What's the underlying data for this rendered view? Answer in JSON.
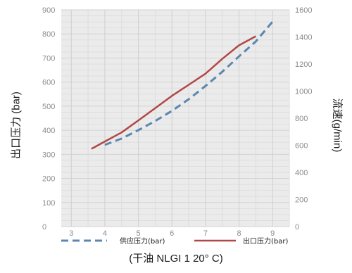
{
  "chart_data": {
    "type": "line",
    "title": "",
    "xlabel": "(干油 NLGI 1 20° C)",
    "ylabel_left": "出口压力 (bar)",
    "ylabel_right": "流速(g/min)",
    "x_ticks": [
      3,
      4,
      5,
      6,
      7,
      8,
      9
    ],
    "xlim": [
      2.7,
      9.5
    ],
    "y_left_ticks": [
      0,
      100,
      200,
      300,
      400,
      500,
      600,
      700,
      800,
      900
    ],
    "y_left_lim": [
      0,
      900
    ],
    "y_right_ticks": [
      0,
      200,
      400,
      600,
      800,
      1000,
      1200,
      1400,
      1600
    ],
    "y_right_lim": [
      0,
      1600
    ],
    "grid": true,
    "legend_position": "bottom",
    "series": [
      {
        "name": "供应压力(bar)",
        "style": "dashed",
        "color": "#5b87b0",
        "axis": "right",
        "x": [
          4.0,
          4.5,
          5.0,
          5.5,
          6.0,
          6.5,
          7.0,
          7.5,
          8.0,
          8.5,
          9.0
        ],
        "y": [
          603,
          650,
          712,
          779,
          854,
          940,
          1038,
          1143,
          1256,
          1367,
          1513
        ]
      },
      {
        "name": "出口压力(bar)",
        "style": "solid",
        "color": "#b04846",
        "axis": "right",
        "x": [
          3.6,
          4.0,
          4.5,
          5.0,
          5.5,
          6.0,
          6.5,
          7.0,
          7.5,
          8.0,
          8.5
        ],
        "y": [
          574,
          628,
          695,
          784,
          874,
          965,
          1047,
          1129,
          1238,
          1338,
          1405
        ]
      }
    ]
  }
}
